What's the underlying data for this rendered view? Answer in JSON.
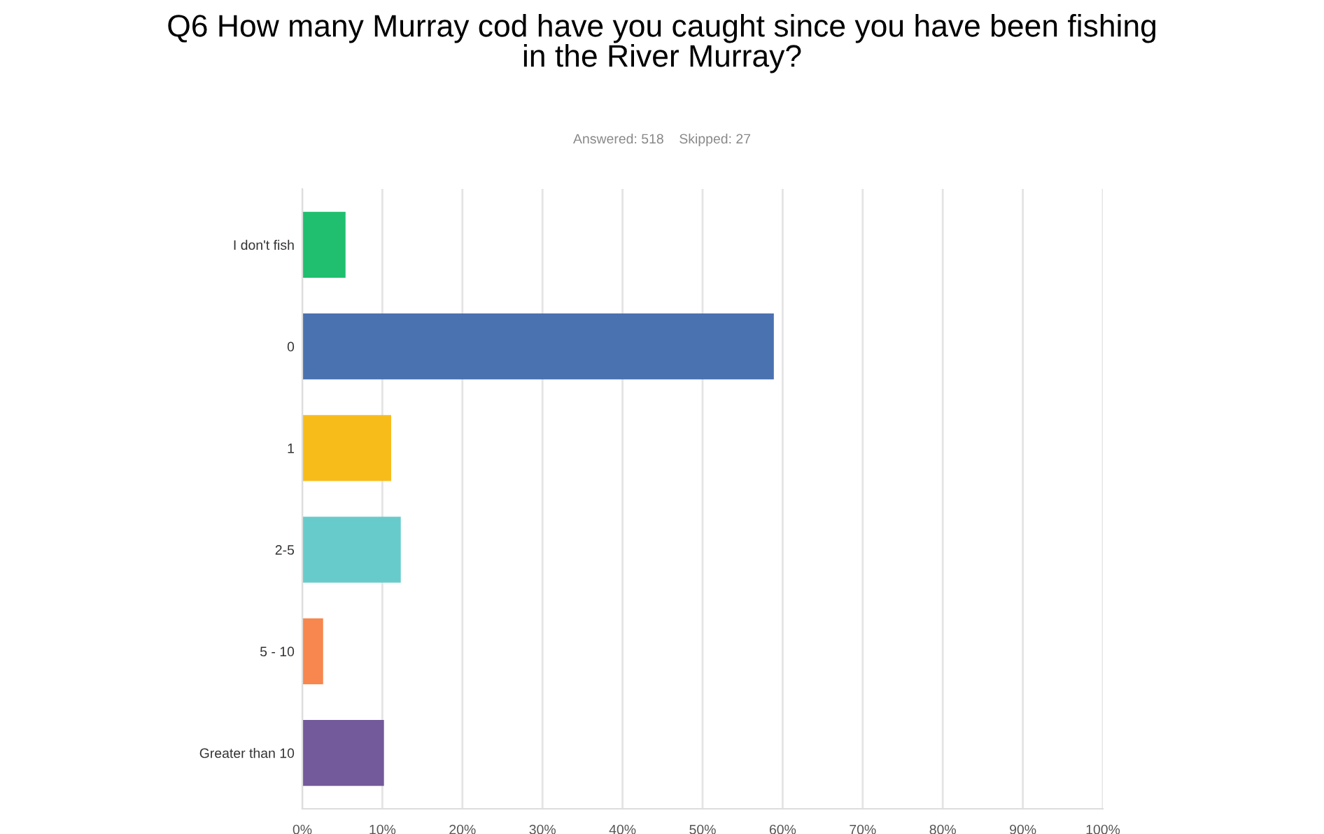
{
  "chart_data": {
    "type": "bar",
    "orientation": "horizontal",
    "title": "Q6 How many Murray cod have you caught since you have been fishing\nin the River Murray?",
    "subtitle": "Answered: 518    Skipped: 27",
    "categories": [
      "I don't fish",
      "0",
      "1",
      "2-5",
      "5 - 10",
      "Greater than 10"
    ],
    "values": [
      5.4,
      58.9,
      11.1,
      12.3,
      2.6,
      10.2
    ],
    "colors": [
      "#1fbf6f",
      "#4a72b0",
      "#f8bc1a",
      "#68cbcb",
      "#f7874e",
      "#735a9b"
    ],
    "xlim": [
      0,
      100
    ],
    "xticks": [
      {
        "value": 0,
        "label": "0%"
      },
      {
        "value": 10,
        "label": "10%"
      },
      {
        "value": 20,
        "label": "20%"
      },
      {
        "value": 30,
        "label": "30%"
      },
      {
        "value": 40,
        "label": "40%"
      },
      {
        "value": 50,
        "label": "50%"
      },
      {
        "value": 60,
        "label": "60%"
      },
      {
        "value": 70,
        "label": "70%"
      },
      {
        "value": 80,
        "label": "80%"
      },
      {
        "value": 90,
        "label": "90%"
      },
      {
        "value": 100,
        "label": "100%"
      }
    ],
    "grid": "x",
    "legend": false
  }
}
